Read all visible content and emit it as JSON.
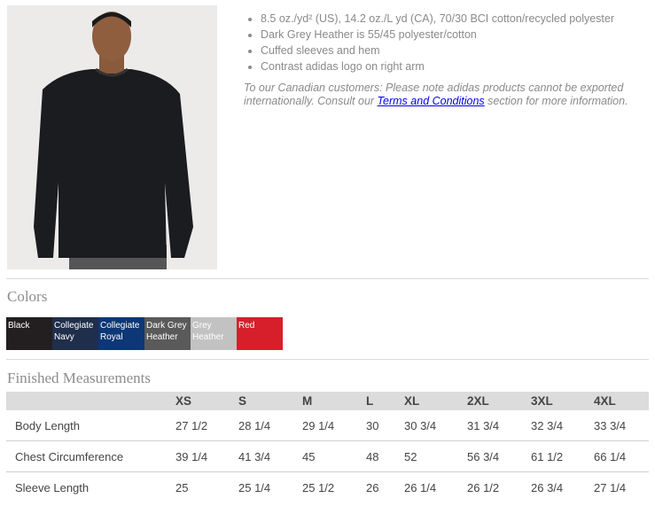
{
  "product": {
    "features": [
      "8.5 oz./yd² (US), 14.2 oz./L yd (CA), 70/30 BCI cotton/recycled polyester",
      "Dark Grey Heather is 55/45 polyester/cotton",
      "Cuffed sleeves and hem",
      "Contrast adidas logo on right arm"
    ],
    "note_before": "To our Canadian customers: Please note adidas products cannot be exported internationally. Consult our ",
    "note_link": "Terms and Conditions",
    "note_after": " section for more information."
  },
  "colors": {
    "title": "Colors",
    "swatches": [
      {
        "label": "Black",
        "color": "#231f20"
      },
      {
        "label": "Collegiate Navy",
        "color": "#1f2e4a"
      },
      {
        "label": "Collegiate Royal",
        "color": "#0d3775"
      },
      {
        "label": "Dark Grey Heather",
        "color": "#5a5a5a"
      },
      {
        "label": "Grey Heather",
        "color": "#c2c2c2"
      },
      {
        "label": "Red",
        "color": "#d71f2b"
      }
    ]
  },
  "measurements": {
    "title": "Finished Measurements",
    "sizes": [
      "XS",
      "S",
      "M",
      "L",
      "XL",
      "2XL",
      "3XL",
      "4XL"
    ],
    "rows": [
      {
        "label": "Body Length",
        "values": [
          "27 1/2",
          "28 1/4",
          "29 1/4",
          "30",
          "30 3/4",
          "31 3/4",
          "32 3/4",
          "33 3/4"
        ]
      },
      {
        "label": "Chest Circumference",
        "values": [
          "39 1/4",
          "41 3/4",
          "45",
          "48",
          "52",
          "56 3/4",
          "61 1/2",
          "66 1/4"
        ]
      },
      {
        "label": "Sleeve Length",
        "values": [
          "25",
          "25 1/4",
          "25 1/2",
          "26",
          "26 1/4",
          "26 1/2",
          "26 3/4",
          "27 1/4"
        ]
      }
    ]
  }
}
